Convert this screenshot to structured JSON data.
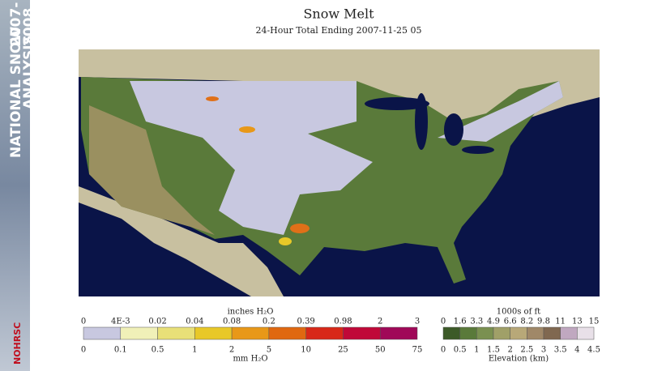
{
  "sidebar": {
    "line1": "NATIONAL SNOW",
    "line1_years": "2007-",
    "line2": "ANALYSIS",
    "line2_years": "2008",
    "logo": "NOHRSC"
  },
  "title": "Snow Melt",
  "subtitle": "24-Hour Total Ending 2007-11-25 05",
  "melt_legend": {
    "top_title": "inches H₂O",
    "top_labels": [
      "0",
      "4E-3",
      "0.02",
      "0.04",
      "0.08",
      "0.2",
      "0.39",
      "0.98",
      "2",
      "3"
    ],
    "bottom_labels": [
      "0",
      "0.1",
      "0.5",
      "1",
      "2",
      "5",
      "10",
      "25",
      "50",
      "75"
    ],
    "bottom_title": "mm H₂O",
    "colors": [
      "#c8c8e0",
      "#f0f0b8",
      "#e8e078",
      "#e8c828",
      "#e89818",
      "#e06810",
      "#d82818",
      "#c00838",
      "#a00858"
    ]
  },
  "elevation_legend": {
    "top_title": "1000s of ft",
    "top_labels": [
      "0",
      "1.6",
      "3.3",
      "4.9",
      "6.6",
      "8.2",
      "9.8",
      "11",
      "13",
      "15"
    ],
    "bottom_labels": [
      "0",
      "0.5",
      "1",
      "1.5",
      "2",
      "2.5",
      "3",
      "3.5",
      "4",
      "4.5"
    ],
    "bottom_title": "Elevation (km)",
    "colors": [
      "#3c5a28",
      "#5a7a3a",
      "#7a9050",
      "#a0a068",
      "#b8a878",
      "#a08868",
      "#806850",
      "#c0a8c0",
      "#e8e0e8"
    ]
  }
}
